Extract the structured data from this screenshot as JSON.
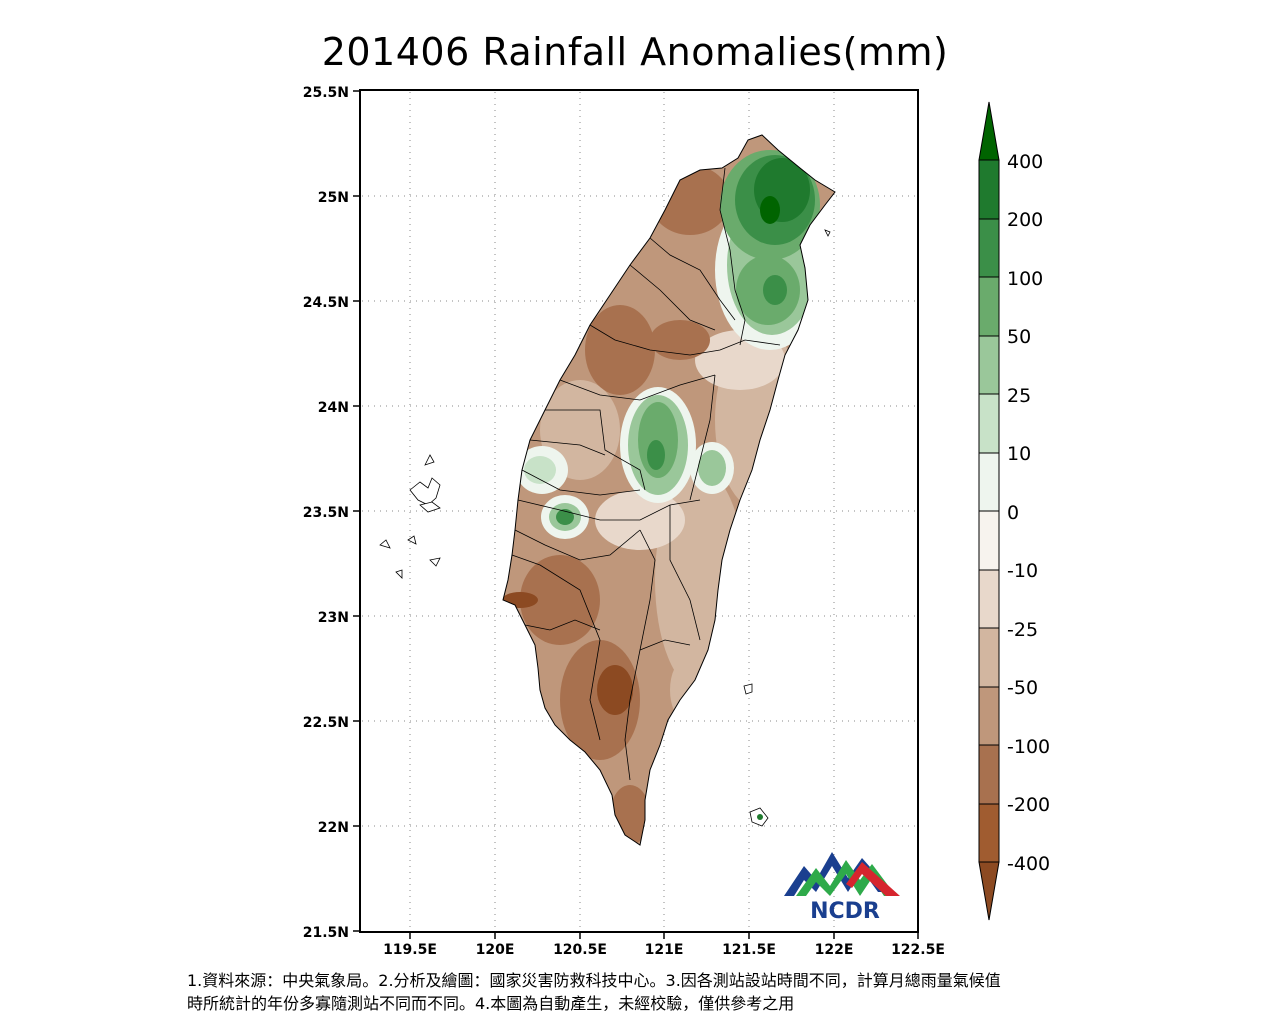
{
  "title": "201406 Rainfall Anomalies(mm)",
  "axes": {
    "y_ticks": [
      "25.5N",
      "25N",
      "24.5N",
      "24N",
      "23.5N",
      "23N",
      "22.5N",
      "22N",
      "21.5N"
    ],
    "x_ticks": [
      "119.5E",
      "120E",
      "120.5E",
      "121E",
      "121.5E",
      "122E",
      "122.5E"
    ]
  },
  "colorbar": {
    "labels": [
      "400",
      "200",
      "100",
      "50",
      "25",
      "10",
      "0",
      "-10",
      "-25",
      "-50",
      "-100",
      "-200",
      "-400"
    ],
    "colors": [
      "#006400",
      "#1f7a2e",
      "#3b8f48",
      "#6aab6c",
      "#9ac79a",
      "#c8e2c8",
      "#eef5ee",
      "#f7f3ee",
      "#e8d8cb",
      "#d2b6a0",
      "#bf977b",
      "#a8714f",
      "#8c4a22"
    ]
  },
  "logo": {
    "text": "NCDR"
  },
  "footer": {
    "line1": "1.資料來源：中央氣象局。2.分析及繪圖：國家災害防救科技中心。3.因各測站設站時間不同，計算月總雨量氣候值",
    "line2": "時所統計的年份多寡隨測站不同而不同。4.本圖為自動產生，未經校驗，僅供參考之用"
  }
}
